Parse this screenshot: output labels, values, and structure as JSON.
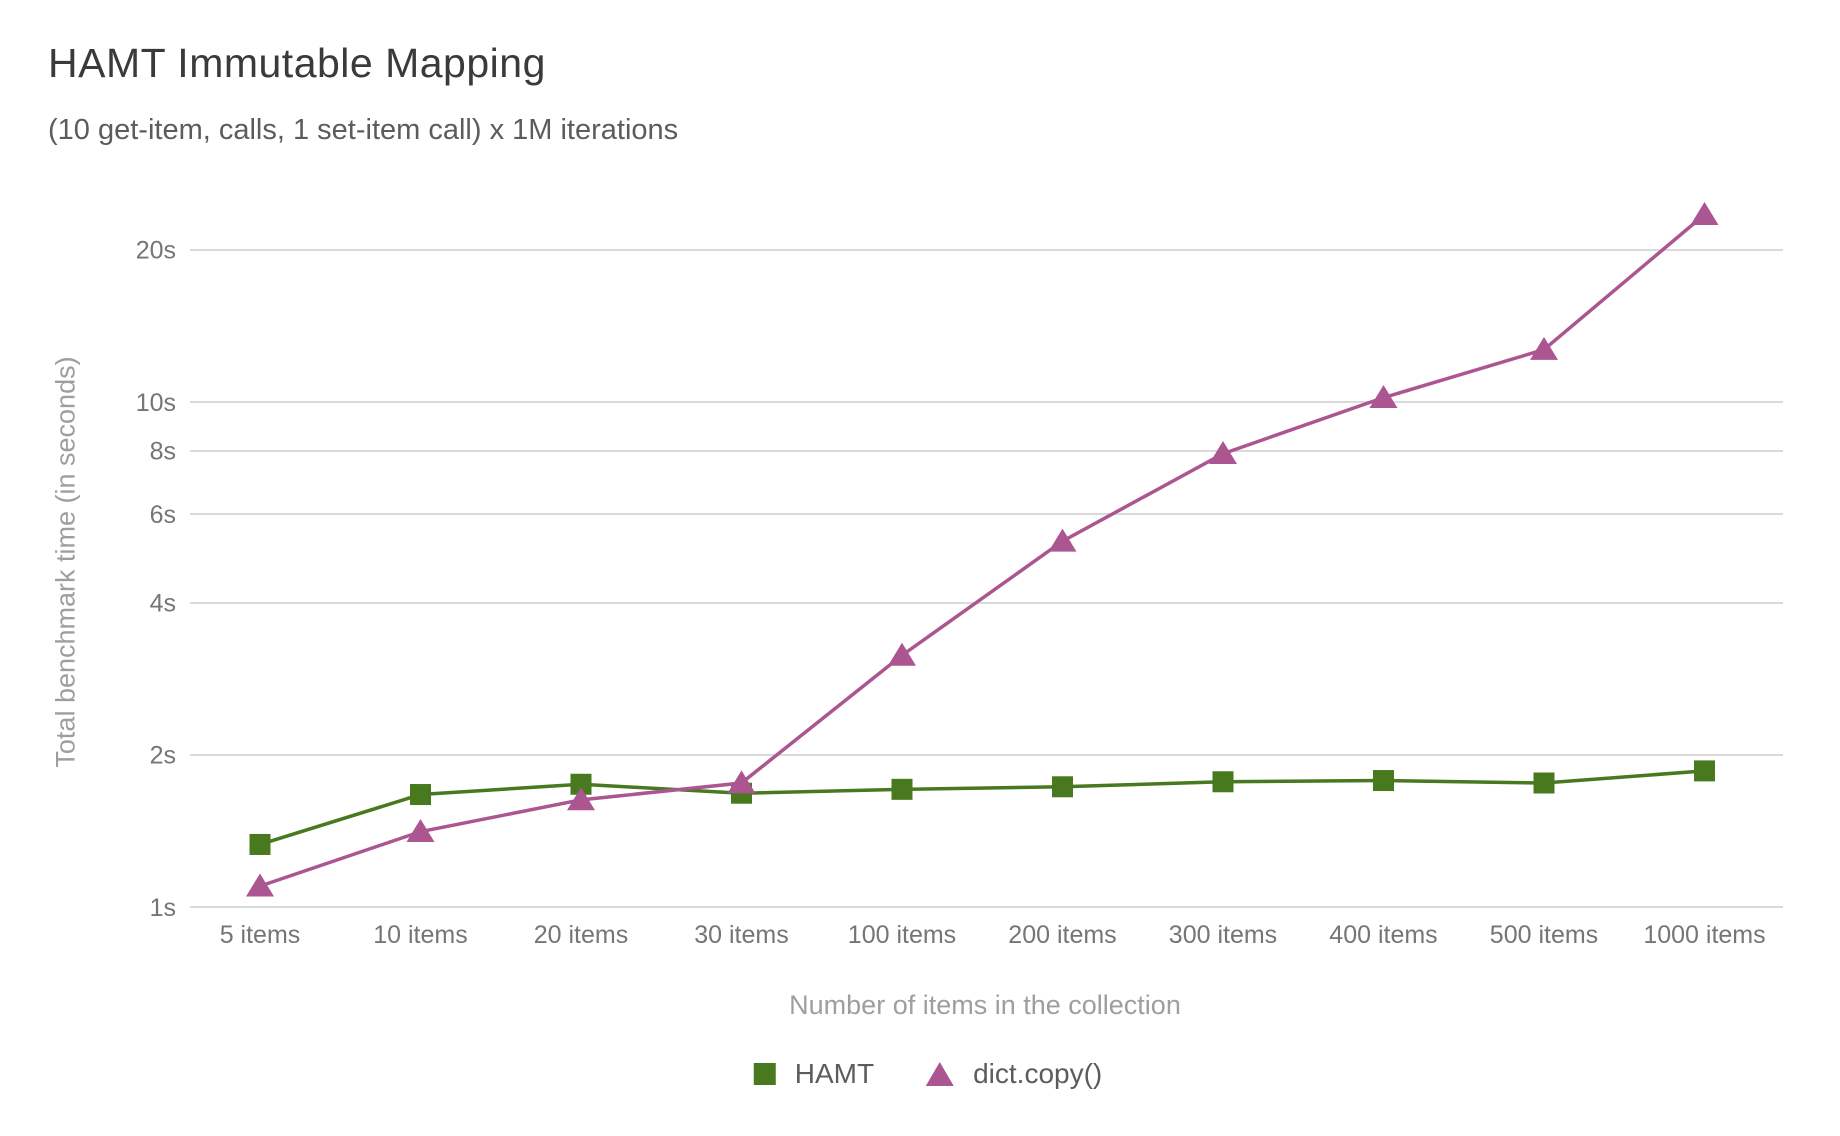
{
  "chart_data": {
    "type": "line",
    "title": "HAMT Immutable Mapping",
    "subtitle": "(10 get-item, calls, 1 set-item call) x 1M iterations",
    "xlabel": "Number of items in the collection",
    "ylabel": "Total benchmark time (in seconds)",
    "y_scale": "log",
    "ylim": [
      1,
      26
    ],
    "grid": true,
    "legend_position": "bottom",
    "y_ticks": [
      {
        "value": 1,
        "label": "1s"
      },
      {
        "value": 2,
        "label": "2s"
      },
      {
        "value": 4,
        "label": "4s"
      },
      {
        "value": 6,
        "label": "6s"
      },
      {
        "value": 8,
        "label": "8s"
      },
      {
        "value": 10,
        "label": "10s"
      },
      {
        "value": 20,
        "label": "20s"
      }
    ],
    "categories": [
      "5 items",
      "10 items",
      "20 items",
      "30 items",
      "100 items",
      "200 items",
      "300 items",
      "400 items",
      "500 items",
      "1000 items"
    ],
    "series": [
      {
        "name": "HAMT",
        "color": "#48791f",
        "marker": "square",
        "values": [
          1.33,
          1.67,
          1.75,
          1.68,
          1.71,
          1.73,
          1.77,
          1.78,
          1.76,
          1.86
        ]
      },
      {
        "name": "dict.copy()",
        "color": "#ab5690",
        "marker": "triangle",
        "values": [
          1.1,
          1.41,
          1.63,
          1.76,
          3.15,
          5.3,
          7.9,
          10.2,
          12.7,
          23.5
        ]
      }
    ],
    "colors": {
      "gridline": "#dadada",
      "tick_label": "#757575",
      "axis_title": "#9e9e9e",
      "title": "#3a3a3a",
      "subtitle": "#5c5c5c"
    }
  }
}
